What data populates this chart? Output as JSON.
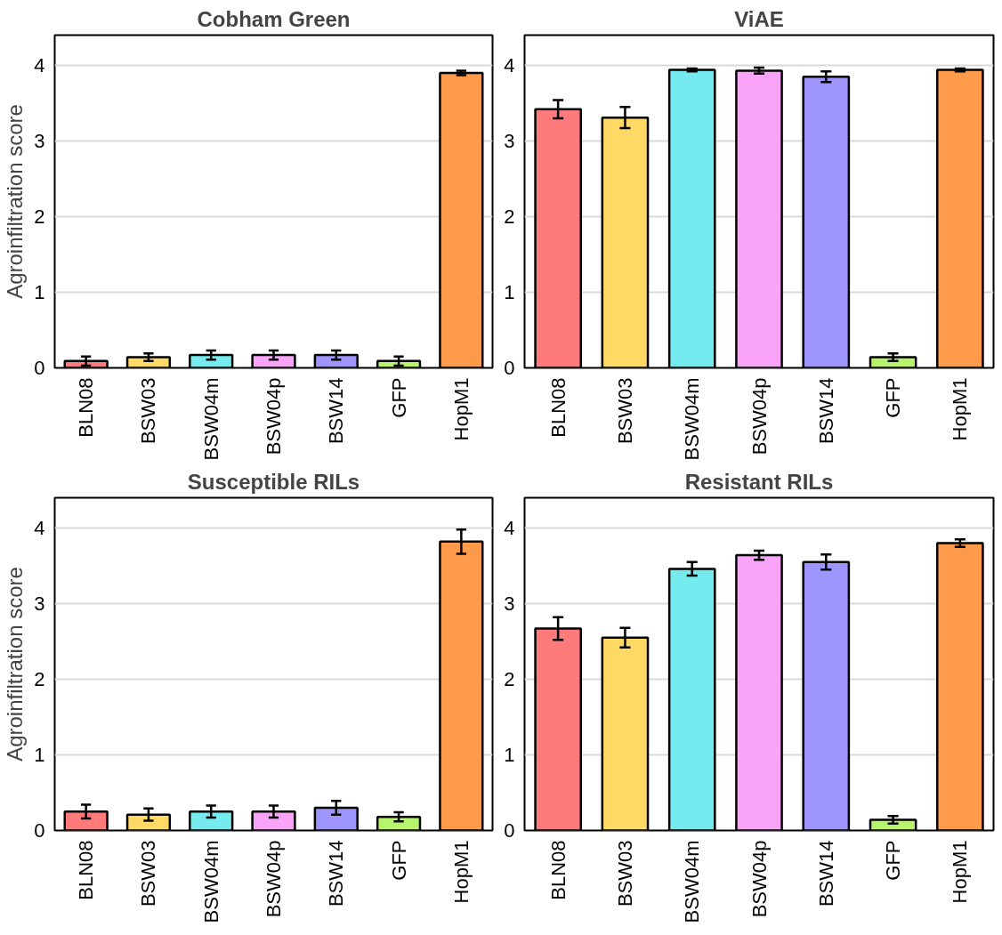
{
  "chart_data": [
    {
      "type": "bar",
      "title": "Cobham Green",
      "ylabel": "Agroinfiltration score",
      "categories": [
        "BLN08",
        "BSW03",
        "BSW04m",
        "BSW04p",
        "BSW14",
        "GFP",
        "HopM1"
      ],
      "values": [
        0.09,
        0.14,
        0.17,
        0.17,
        0.17,
        0.09,
        3.9
      ],
      "errors": [
        0.06,
        0.05,
        0.06,
        0.06,
        0.06,
        0.06,
        0.03
      ],
      "colors": [
        "#ff7b7b",
        "#ffd966",
        "#76ebef",
        "#f9a3f9",
        "#9e94fe",
        "#b6f46b",
        "#ff9a4b"
      ],
      "ylim": [
        0,
        4.4
      ],
      "yticks": [
        0,
        1,
        2,
        3,
        4
      ],
      "grid": "y"
    },
    {
      "type": "bar",
      "title": "ViAE",
      "categories": [
        "BLN08",
        "BSW03",
        "BSW04m",
        "BSW04p",
        "BSW14",
        "GFP",
        "HopM1"
      ],
      "values": [
        3.42,
        3.31,
        3.94,
        3.93,
        3.85,
        0.14,
        3.94
      ],
      "errors": [
        0.12,
        0.14,
        0.02,
        0.04,
        0.07,
        0.05,
        0.02
      ],
      "colors": [
        "#ff7b7b",
        "#ffd966",
        "#76ebef",
        "#f9a3f9",
        "#9e94fe",
        "#b6f46b",
        "#ff9a4b"
      ],
      "ylim": [
        0,
        4.4
      ],
      "yticks": [
        0,
        1,
        2,
        3,
        4
      ],
      "grid": "y"
    },
    {
      "type": "bar",
      "title": "Susceptible RILs",
      "ylabel": "Agroinfiltration score",
      "categories": [
        "BLN08",
        "BSW03",
        "BSW04m",
        "BSW04p",
        "BSW14",
        "GFP",
        "HopM1"
      ],
      "values": [
        0.25,
        0.21,
        0.25,
        0.25,
        0.3,
        0.18,
        3.82
      ],
      "errors": [
        0.09,
        0.08,
        0.08,
        0.08,
        0.09,
        0.06,
        0.16
      ],
      "colors": [
        "#ff7b7b",
        "#ffd966",
        "#76ebef",
        "#f9a3f9",
        "#9e94fe",
        "#b6f46b",
        "#ff9a4b"
      ],
      "ylim": [
        0,
        4.4
      ],
      "yticks": [
        0,
        1,
        2,
        3,
        4
      ],
      "grid": "y"
    },
    {
      "type": "bar",
      "title": "Resistant RILs",
      "categories": [
        "BLN08",
        "BSW03",
        "BSW04m",
        "BSW04p",
        "BSW14",
        "GFP",
        "HopM1"
      ],
      "values": [
        2.67,
        2.55,
        3.46,
        3.64,
        3.55,
        0.14,
        3.8
      ],
      "errors": [
        0.15,
        0.13,
        0.09,
        0.06,
        0.1,
        0.05,
        0.05
      ],
      "colors": [
        "#ff7b7b",
        "#ffd966",
        "#76ebef",
        "#f9a3f9",
        "#9e94fe",
        "#b6f46b",
        "#ff9a4b"
      ],
      "ylim": [
        0,
        4.4
      ],
      "yticks": [
        0,
        1,
        2,
        3,
        4
      ],
      "grid": "y"
    }
  ]
}
